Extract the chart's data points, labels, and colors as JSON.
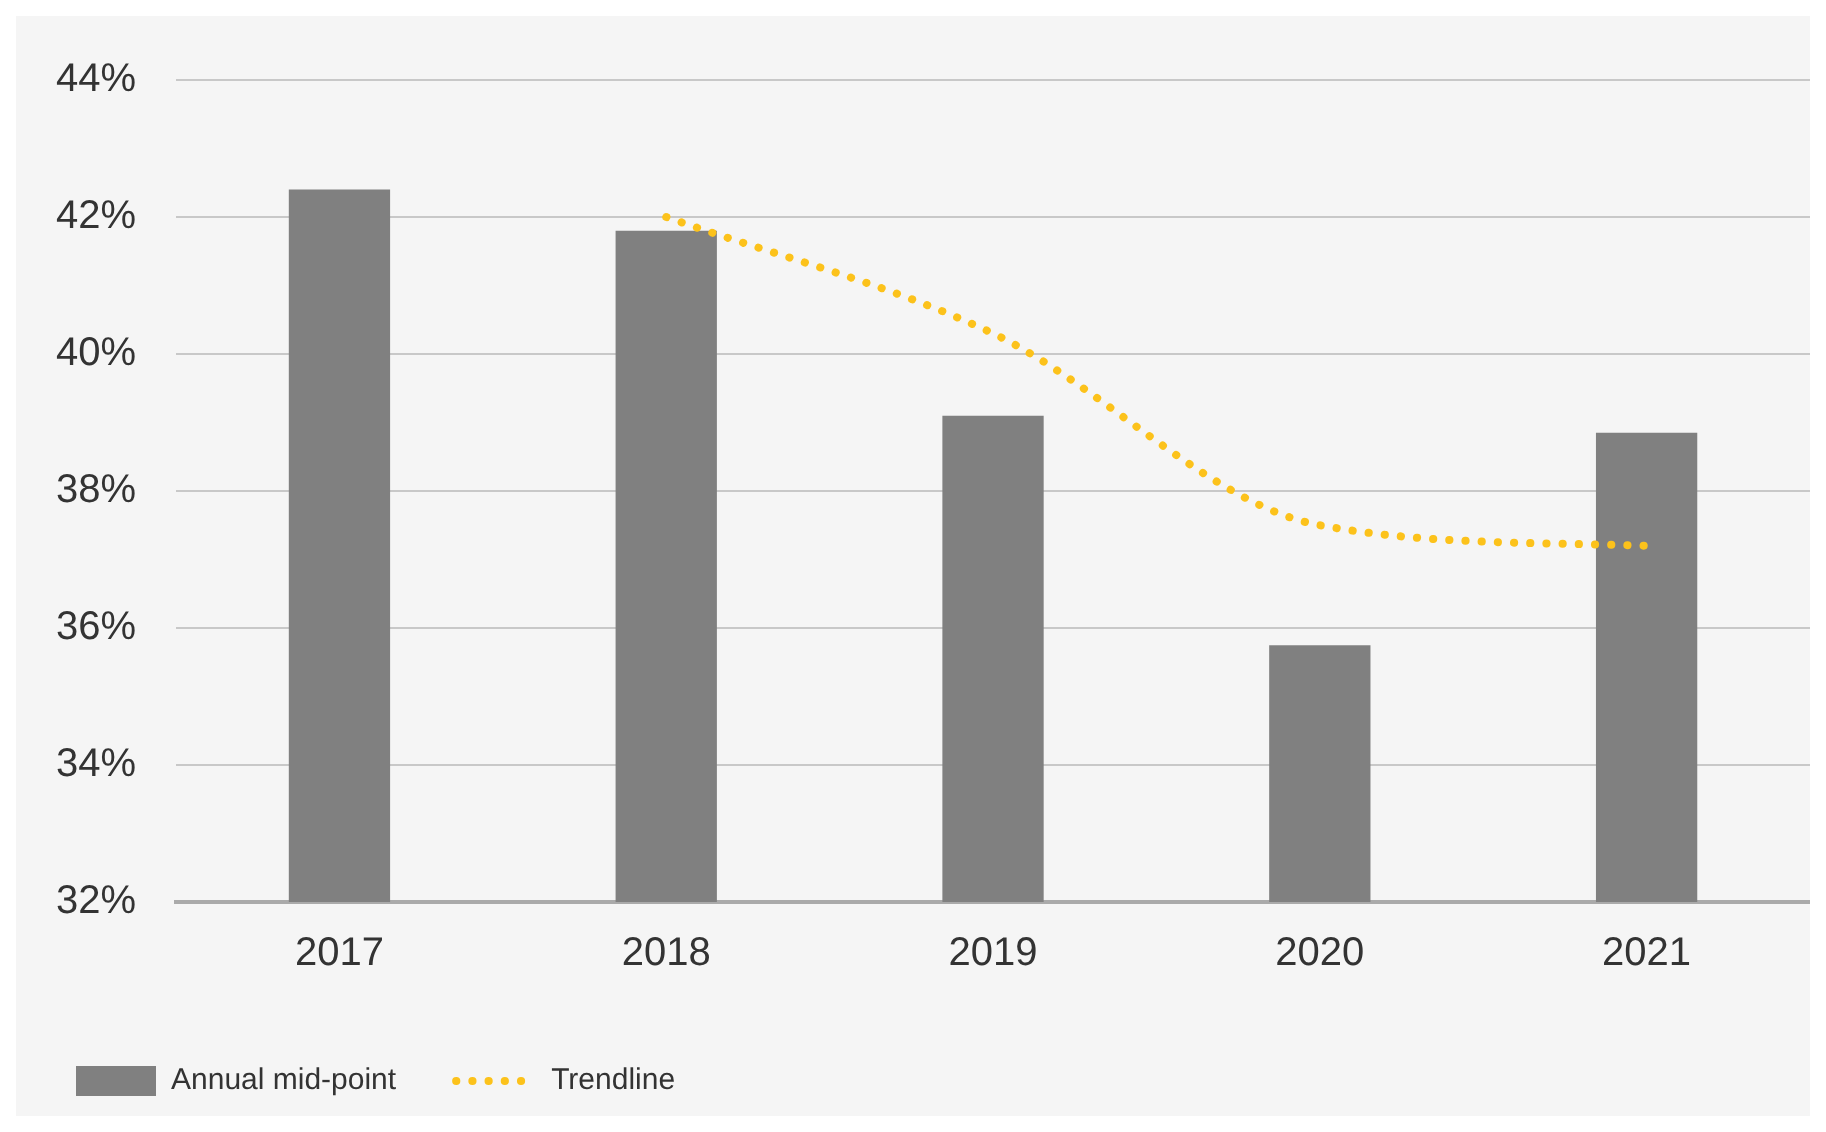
{
  "chart_data": {
    "type": "bar",
    "categories": [
      "2017",
      "2018",
      "2019",
      "2020",
      "2021"
    ],
    "series": [
      {
        "name": "Annual mid-point",
        "color": "#808080",
        "values": [
          42.4,
          41.8,
          39.1,
          35.75,
          38.85
        ]
      },
      {
        "name": "Trendline",
        "type": "line",
        "color": "#fcc21b",
        "line_style": "dotted",
        "marker": "none",
        "values": [
          null,
          42.0,
          40.3,
          37.5,
          37.2
        ]
      }
    ],
    "ylim": [
      32,
      44
    ],
    "yticks": [
      {
        "value": 32,
        "label": "32%"
      },
      {
        "value": 34,
        "label": "34%"
      },
      {
        "value": 36,
        "label": "36%"
      },
      {
        "value": 38,
        "label": "38%"
      },
      {
        "value": 40,
        "label": "40%"
      },
      {
        "value": 42,
        "label": "42%"
      },
      {
        "value": 44,
        "label": "44%"
      }
    ],
    "grid": "y",
    "legend": "bottom left"
  }
}
